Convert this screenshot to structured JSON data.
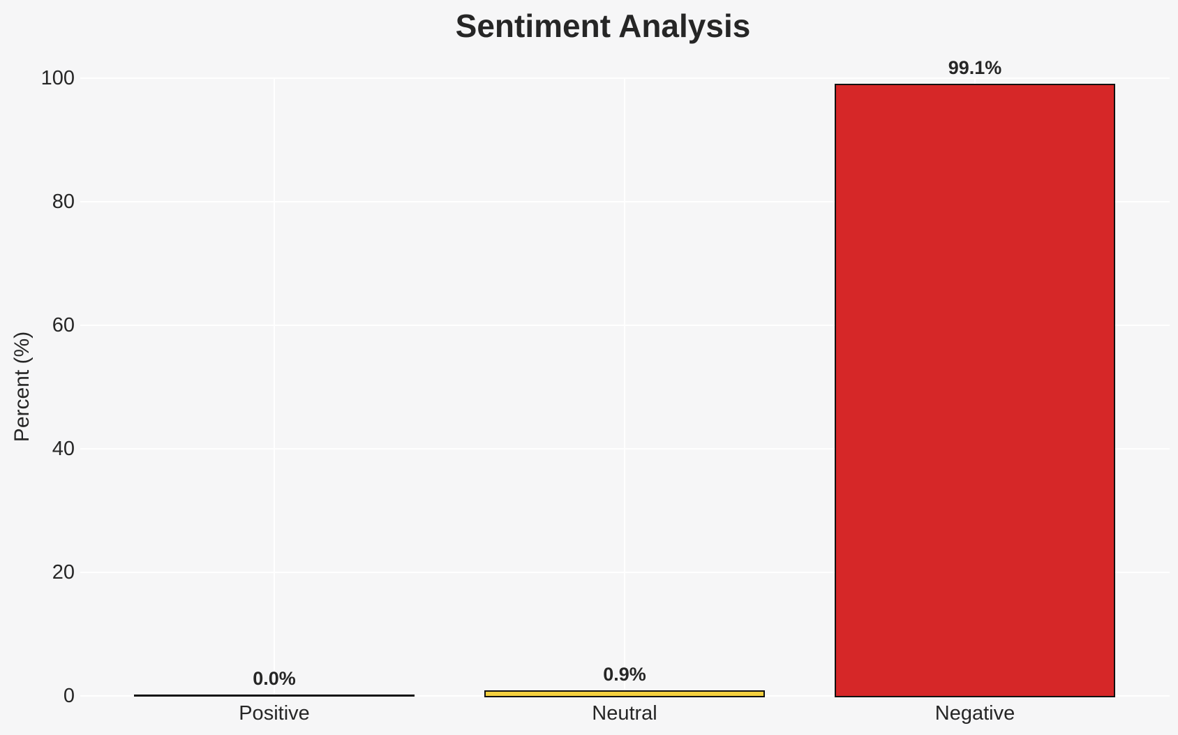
{
  "chart_data": {
    "type": "bar",
    "title": "Sentiment Analysis",
    "xlabel": "",
    "ylabel": "Percent (%)",
    "categories": [
      "Positive",
      "Neutral",
      "Negative"
    ],
    "values": [
      0.0,
      0.9,
      99.1
    ],
    "value_labels": [
      "0.0%",
      "0.9%",
      "99.1%"
    ],
    "bar_fill_colors": [
      "none",
      "#f4d03f",
      "#d62728"
    ],
    "bar_edge_color": "#111111",
    "ylim": [
      0,
      100
    ],
    "yticks": [
      0,
      20,
      40,
      60,
      80,
      100
    ],
    "grid": true,
    "gridline_color": "#ffffff",
    "background_color": "#f6f6f7",
    "text_color": "#262626",
    "legend": "none"
  }
}
